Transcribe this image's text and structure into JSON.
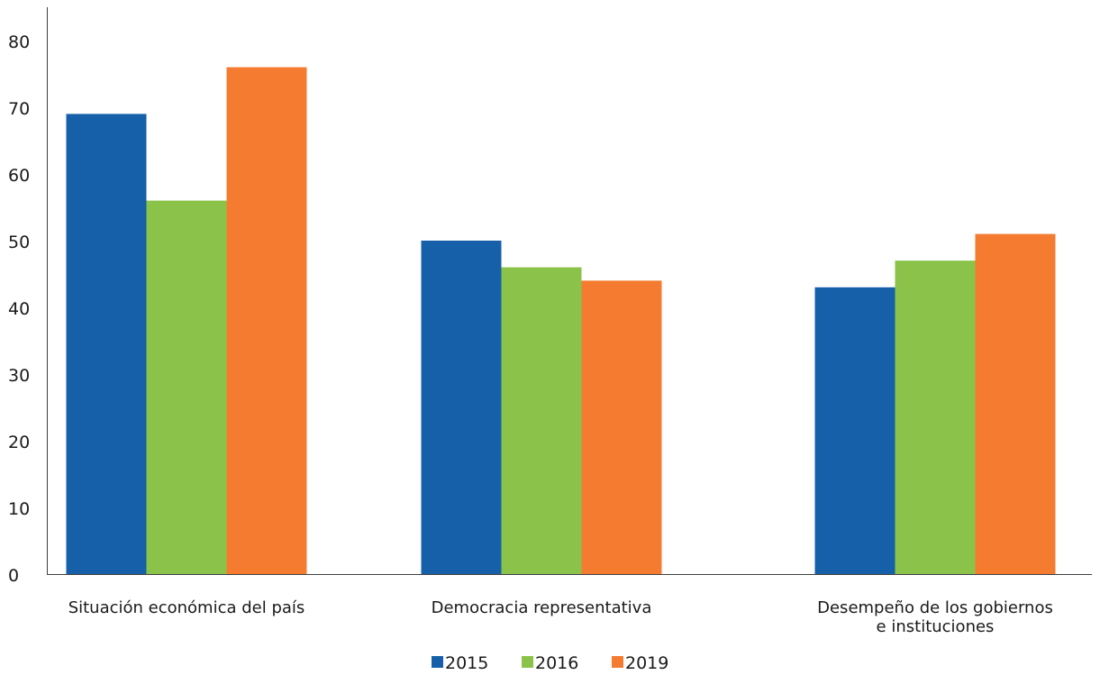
{
  "chart_data": {
    "type": "bar",
    "categories": [
      "Situación económica del país",
      "Democracia representativa",
      "Desempeño de los gobiernos e instituciones"
    ],
    "category_lines": [
      [
        "Situación económica del país"
      ],
      [
        "Democracia representativa"
      ],
      [
        "Desempeño de los gobiernos",
        "e instituciones"
      ]
    ],
    "series": [
      {
        "name": "2015",
        "color": "#1560a8",
        "values": [
          69,
          50,
          43
        ]
      },
      {
        "name": "2016",
        "color": "#8bc34a",
        "values": [
          56,
          46,
          47
        ]
      },
      {
        "name": "2019",
        "color": "#f47b30",
        "values": [
          76,
          44,
          51
        ]
      }
    ],
    "yticks": [
      0,
      10,
      20,
      30,
      40,
      50,
      60,
      70,
      80
    ],
    "ylim": [
      0,
      86
    ],
    "title": "",
    "xlabel": "",
    "ylabel": "",
    "grid": false,
    "legend_position": "bottom-center"
  }
}
